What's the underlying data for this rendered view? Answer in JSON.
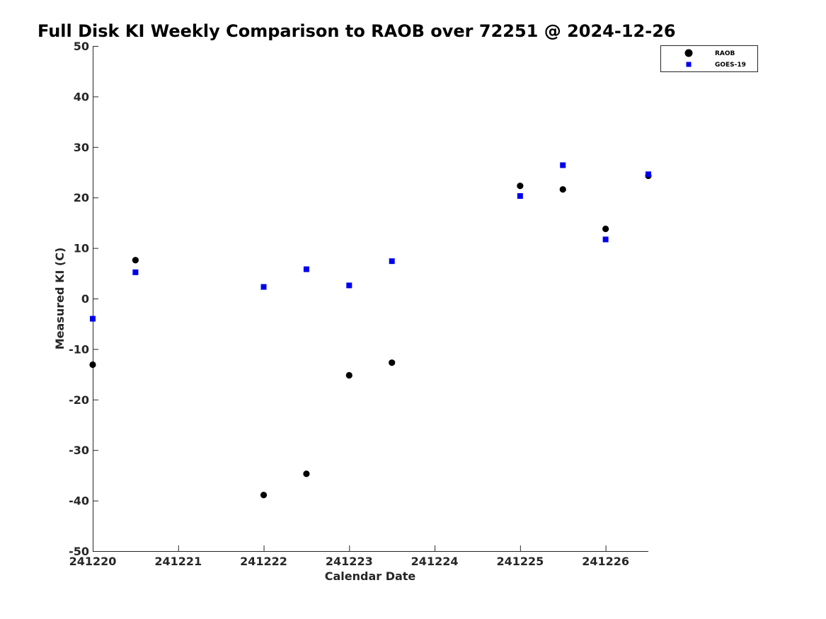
{
  "chart_data": {
    "type": "scatter",
    "title": "Full Disk KI Weekly Comparison to RAOB over 72251 @ 2024-12-26",
    "xlabel": "Calendar Date",
    "ylabel": "Measured KI (C)",
    "xlim": [
      0,
      6.5
    ],
    "ylim": [
      -50,
      50
    ],
    "x_ticks": [
      0,
      1,
      2,
      3,
      4,
      5,
      6
    ],
    "x_tick_labels": [
      "241220",
      "241221",
      "241222",
      "241223",
      "241224",
      "241225",
      "241226"
    ],
    "y_ticks": [
      -50,
      -40,
      -30,
      -20,
      -10,
      0,
      10,
      20,
      30,
      40,
      50
    ],
    "y_tick_labels": [
      "-50",
      "-40",
      "-30",
      "-20",
      "-10",
      "0",
      "10",
      "20",
      "30",
      "40",
      "50"
    ],
    "grid": false,
    "legend_position": "top-right",
    "series": [
      {
        "name": "RAOB",
        "marker": "circle",
        "color": "#000000",
        "x": [
          0,
          0.5,
          2,
          2.5,
          3,
          3.5,
          5,
          5.5,
          6,
          6.5
        ],
        "y": [
          -13.1,
          7.6,
          -38.9,
          -34.7,
          -15.2,
          -12.7,
          22.3,
          21.6,
          13.8,
          24.3
        ]
      },
      {
        "name": "GOES-19",
        "marker": "square",
        "color": "#0000ee",
        "x": [
          0,
          0.5,
          2,
          2.5,
          3,
          3.5,
          5,
          5.5,
          6,
          6.5
        ],
        "y": [
          -4.0,
          5.2,
          2.3,
          5.8,
          2.6,
          7.4,
          20.3,
          26.4,
          11.7,
          24.6
        ]
      }
    ]
  }
}
